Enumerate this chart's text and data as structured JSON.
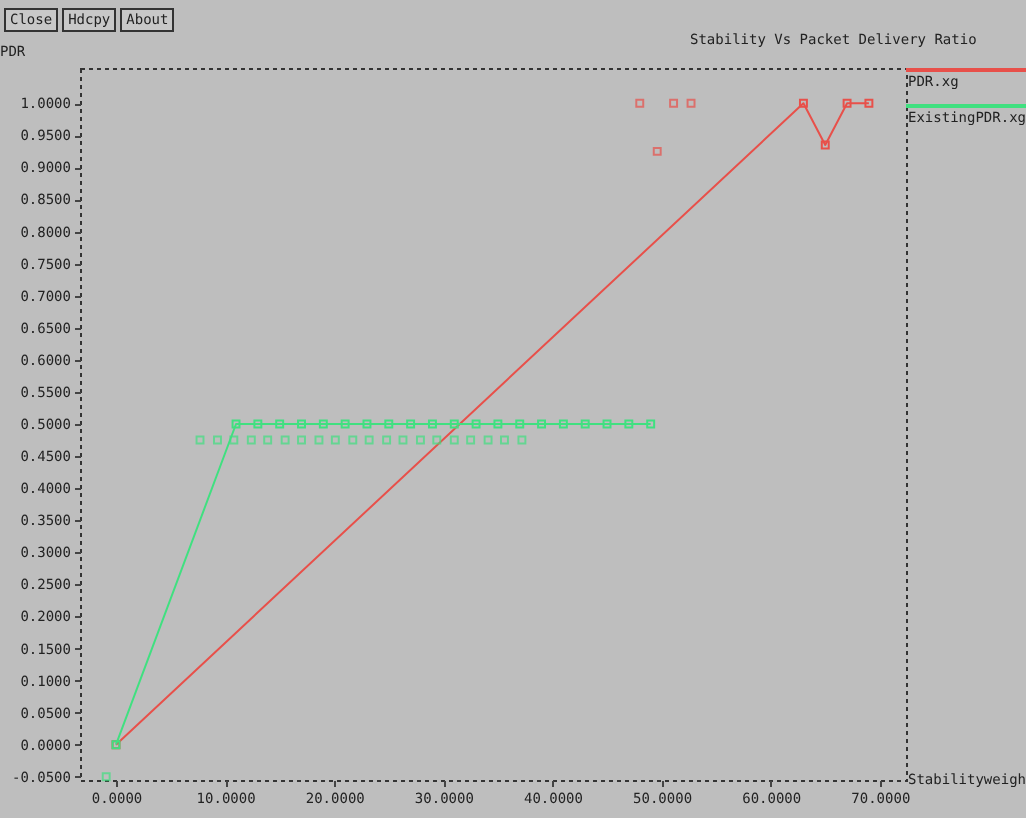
{
  "chart_data": {
    "type": "scatter",
    "title": "Stability Vs Packet Delivery Ratio",
    "xlabel": "Stabilityweigh",
    "ylabel": "PDR",
    "annotations": [
      "Close",
      "Hdcpy",
      "About"
    ],
    "series": [
      {
        "name": "PDR.xg",
        "color": "#e8504a",
        "type": "line",
        "x": [
          0,
          63,
          65,
          67,
          69
        ],
        "values": [
          0,
          1,
          0.935,
          1,
          1
        ]
      },
      {
        "color": "#e8504a",
        "x": [
          48,
          49.6,
          51.1,
          52.7
        ],
        "values": [
          1,
          0.925,
          1,
          1
        ]
      },
      {
        "name": "ExistingPDR.xg",
        "color": "#40e080",
        "type": "line",
        "x": [
          0,
          11,
          13,
          15,
          17,
          19,
          21,
          23,
          25,
          27,
          29,
          31,
          33,
          35,
          37,
          39,
          41,
          43,
          45,
          47,
          49
        ],
        "values": [
          0,
          0.5,
          0.5,
          0.5,
          0.5,
          0.5,
          0.5,
          0.5,
          0.5,
          0.5,
          0.5,
          0.5,
          0.5,
          0.5,
          0.5,
          0.5,
          0.5,
          0.5,
          0.5,
          0.5,
          0.5
        ]
      },
      {
        "color": "#40e080",
        "x": [
          -0.9,
          7.7,
          9.3,
          10.8,
          12.4,
          13.9,
          15.5,
          17.0,
          18.6,
          20.1,
          21.7,
          23.2,
          24.8,
          26.3,
          27.9,
          29.4,
          31.0,
          32.5,
          34.1,
          35.6,
          37.2
        ],
        "values": [
          -0.05,
          0.475,
          0.475,
          0.475,
          0.475,
          0.475,
          0.475,
          0.475,
          0.475,
          0.475,
          0.475,
          0.475,
          0.475,
          0.475,
          0.475,
          0.475,
          0.475,
          0.475,
          0.475,
          0.475,
          0.475
        ]
      }
    ],
    "xlim": [
      -3.3,
      72.4
    ],
    "ylim": [
      -0.055,
      1.055
    ],
    "xticks": [
      {
        "value": 0,
        "label": "0.0000"
      },
      {
        "value": 10,
        "label": "10.0000"
      },
      {
        "value": 20,
        "label": "20.0000"
      },
      {
        "value": 30,
        "label": "30.0000"
      },
      {
        "value": 40,
        "label": "40.0000"
      },
      {
        "value": 50,
        "label": "50.0000"
      },
      {
        "value": 60,
        "label": "60.0000"
      },
      {
        "value": 70,
        "label": "70.0000"
      }
    ],
    "yticks": [
      {
        "value": -0.05,
        "label": "-0.0500"
      },
      {
        "value": 0,
        "label": "0.0000"
      },
      {
        "value": 0.05,
        "label": "0.0500"
      },
      {
        "value": 0.1,
        "label": "0.1000"
      },
      {
        "value": 0.15,
        "label": "0.1500"
      },
      {
        "value": 0.2,
        "label": "0.2000"
      },
      {
        "value": 0.25,
        "label": "0.2500"
      },
      {
        "value": 0.3,
        "label": "0.3000"
      },
      {
        "value": 0.35,
        "label": "0.3500"
      },
      {
        "value": 0.4,
        "label": "0.4000"
      },
      {
        "value": 0.45,
        "label": "0.4500"
      },
      {
        "value": 0.5,
        "label": "0.5000"
      },
      {
        "value": 0.55,
        "label": "0.5500"
      },
      {
        "value": 0.6,
        "label": "0.6000"
      },
      {
        "value": 0.65,
        "label": "0.6500"
      },
      {
        "value": 0.7,
        "label": "0.7000"
      },
      {
        "value": 0.75,
        "label": "0.7500"
      },
      {
        "value": 0.8,
        "label": "0.8000"
      },
      {
        "value": 0.85,
        "label": "0.8500"
      },
      {
        "value": 0.9,
        "label": "0.9000"
      },
      {
        "value": 0.95,
        "label": "0.9500"
      },
      {
        "value": 1,
        "label": "1.0000"
      }
    ],
    "grid": false,
    "legend": "top right",
    "marker": "square",
    "line_style": "solid"
  }
}
